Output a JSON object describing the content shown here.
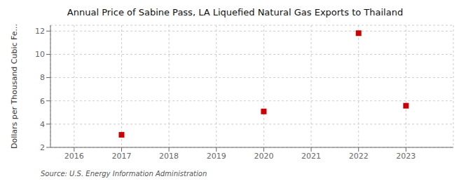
{
  "chart_data": {
    "type": "scatter",
    "title": "Annual Price of Sabine Pass, LA Liquefied Natural Gas Exports to Thailand",
    "ylabel": "Dollars per Thousand Cubic Fe...",
    "source": "Source: U.S. Energy Information Administration",
    "x": [
      2017,
      2020,
      2022,
      2023
    ],
    "values": [
      3.08,
      5.09,
      11.82,
      5.58
    ],
    "color": "#cc0000",
    "marker": "square",
    "xlim": [
      2015.5,
      2024.0
    ],
    "ylim": [
      2,
      12.5
    ],
    "xticks": [
      2016,
      2017,
      2018,
      2019,
      2020,
      2021,
      2022,
      2023
    ],
    "yticks": [
      2,
      4,
      6,
      8,
      10,
      12
    ],
    "grid": true
  }
}
